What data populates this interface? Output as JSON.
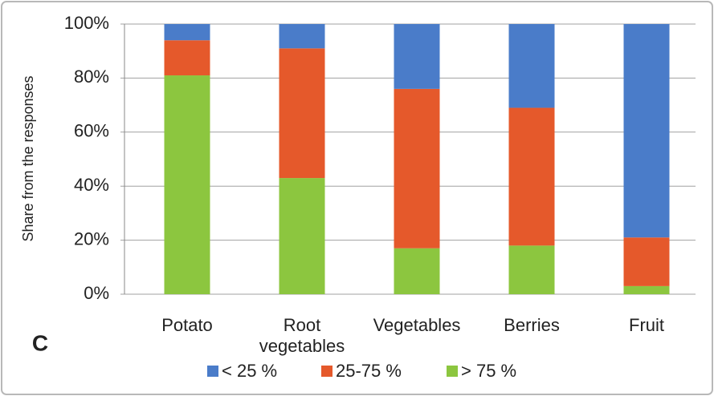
{
  "chart_data": {
    "type": "stacked_bar",
    "y_label": "Share from the responses",
    "annotation": "C",
    "categories": [
      "Potato",
      "Root vegetables",
      "Vegetables",
      "Berries",
      "Fruit"
    ],
    "series": [
      {
        "name": "< 25 %",
        "color": "#4a7cc9",
        "values": [
          6,
          9,
          24,
          31,
          79
        ]
      },
      {
        "name": "25-75 %",
        "color": "#e5592b",
        "values": [
          13,
          48,
          59,
          51,
          18
        ]
      },
      {
        "name": "> 75 %",
        "color": "#8cc63f",
        "values": [
          81,
          43,
          17,
          18,
          3
        ]
      }
    ],
    "ylim": [
      0,
      100
    ],
    "yticks": [
      {
        "value": 0,
        "label": "0%"
      },
      {
        "value": 20,
        "label": "20%"
      },
      {
        "value": 40,
        "label": "40%"
      },
      {
        "value": 60,
        "label": "60%"
      },
      {
        "value": 80,
        "label": "80%"
      },
      {
        "value": 100,
        "label": "100%"
      }
    ],
    "grid": true,
    "legend": "bottom"
  }
}
